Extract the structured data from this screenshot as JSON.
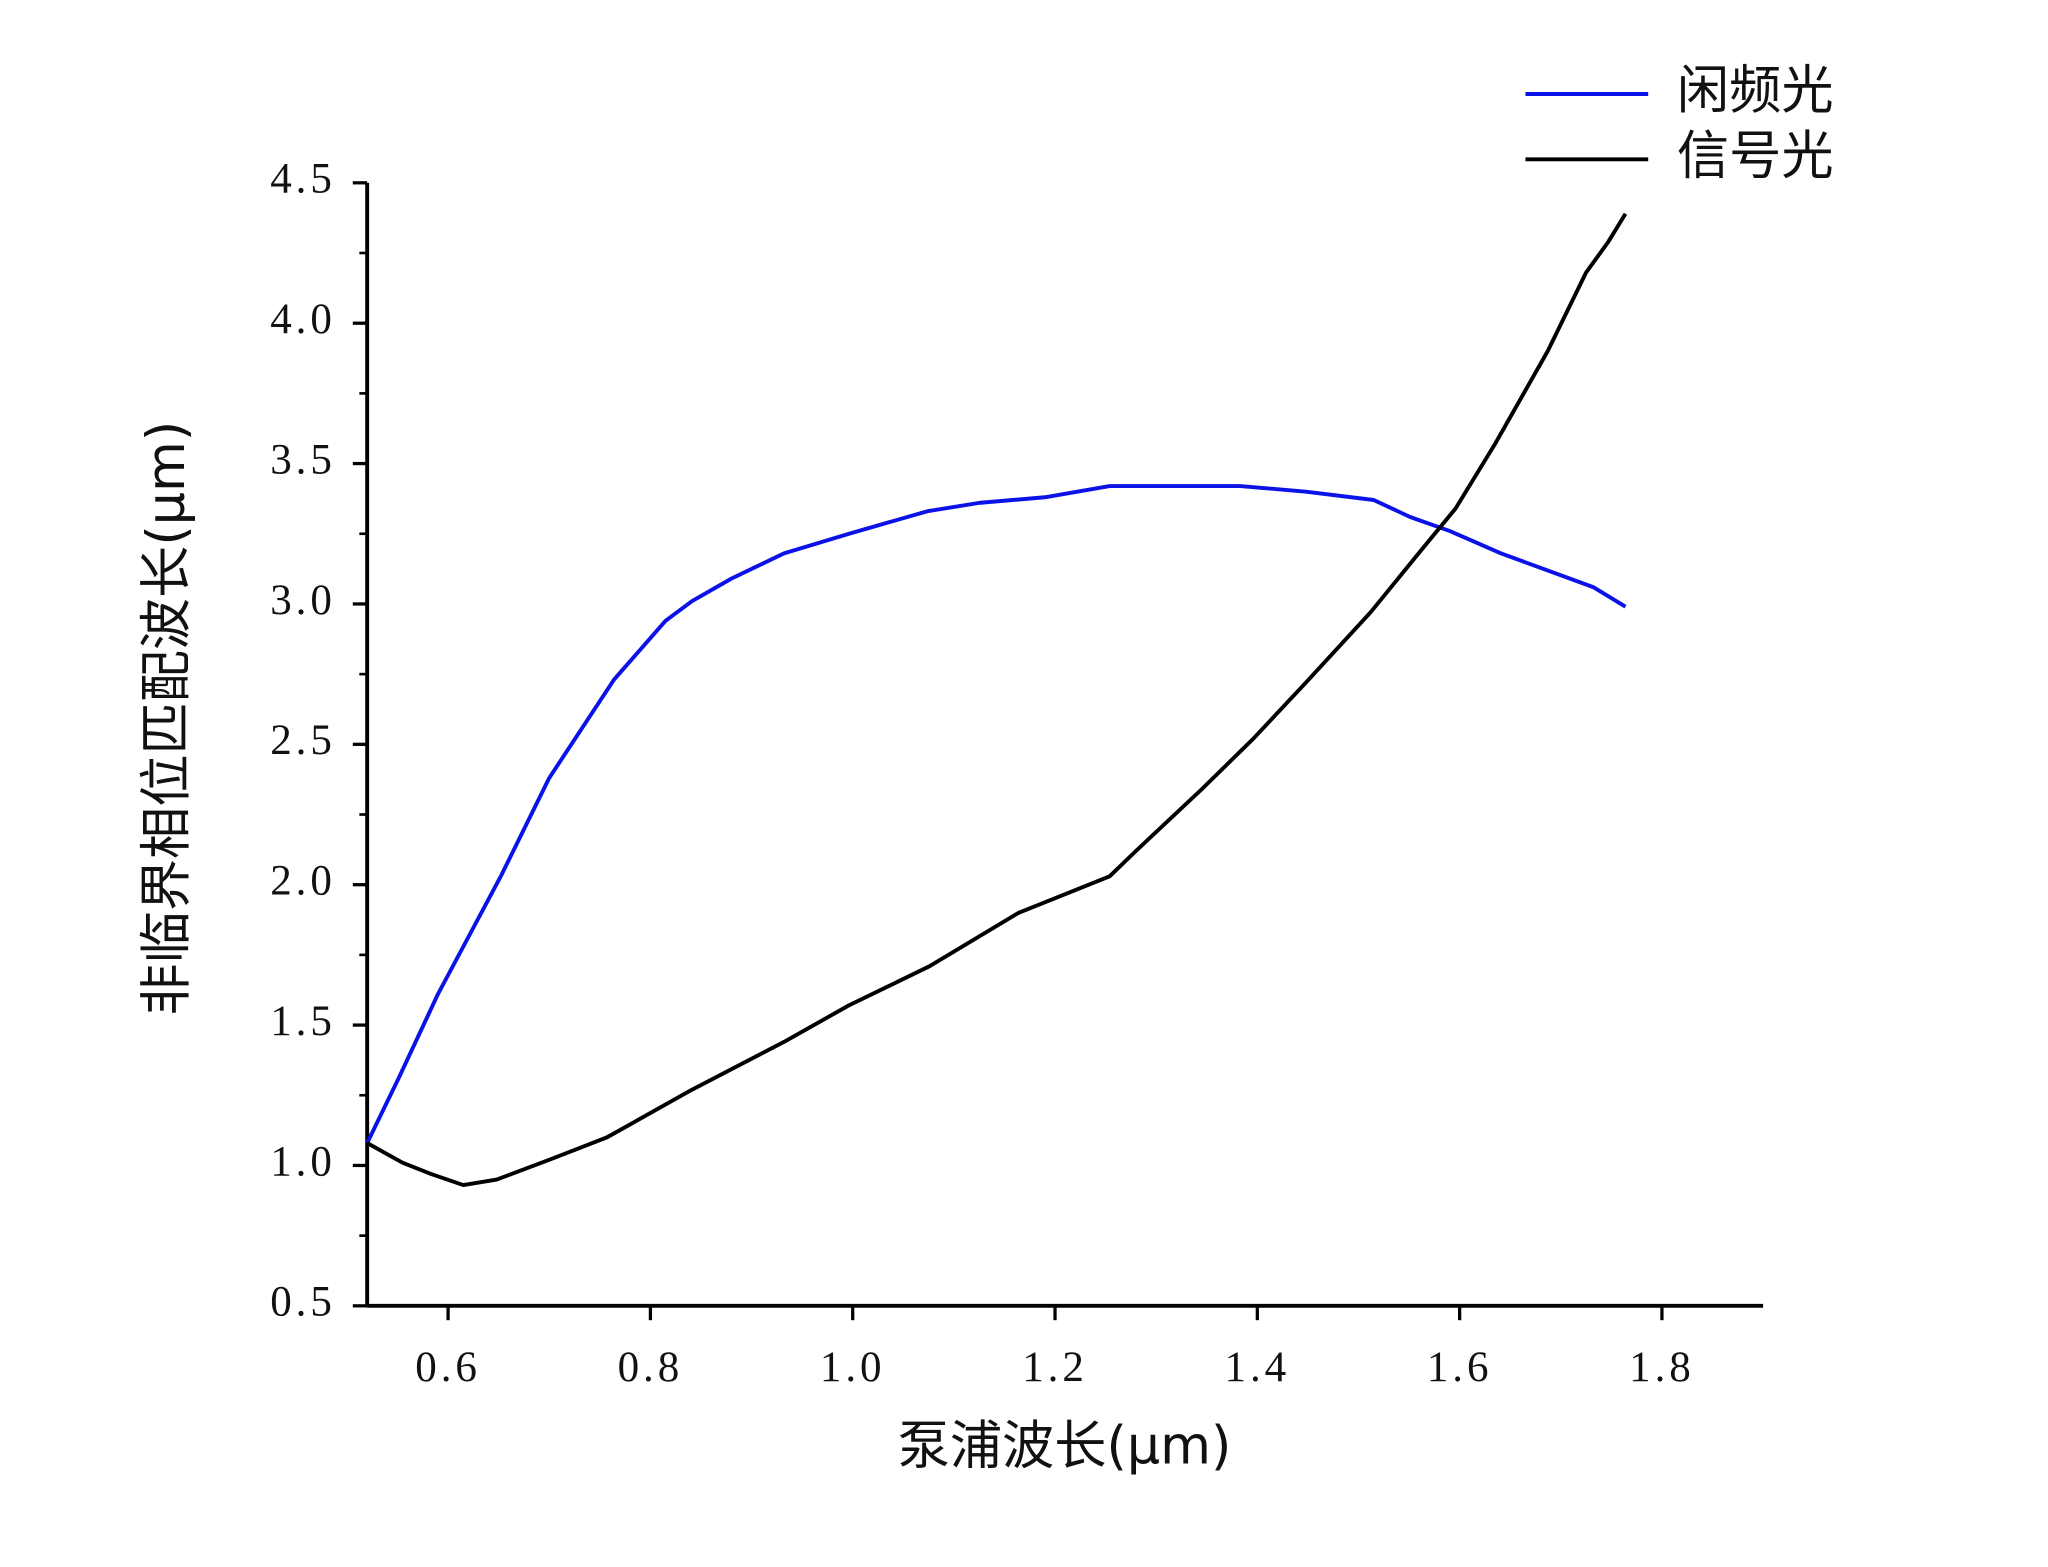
{
  "chart_data": {
    "type": "line",
    "xlabel": "泵浦波长(μm)",
    "ylabel": "非临界相位匹配波长(μm)",
    "xlim": [
      0.52,
      1.9
    ],
    "ylim": [
      0.5,
      4.5
    ],
    "xticks": [
      0.6,
      0.8,
      {
        "value": 1.0,
        "label": "1.0"
      },
      1.2,
      1.4,
      1.6,
      1.8
    ],
    "yticks": [
      0.5,
      {
        "value": 1.0,
        "label": "1.0"
      },
      1.5,
      {
        "value": 2.0,
        "label": "2.0"
      },
      2.5,
      {
        "value": 3.0,
        "label": "3.0"
      },
      3.5,
      {
        "value": 4.0,
        "label": "4.0"
      },
      4.5
    ],
    "legend": "top-right",
    "series": [
      {
        "name": "闲频光",
        "color": "#0a12e8",
        "x": [
          0.52,
          0.551,
          0.59,
          0.652,
          0.7,
          0.764,
          0.815,
          0.841,
          0.88,
          0.932,
          0.996,
          1.074,
          1.125,
          1.19,
          1.254,
          1.319,
          1.383,
          1.448,
          1.515,
          1.551,
          1.59,
          1.641,
          1.732,
          1.764
        ],
        "values": [
          1.08,
          1.31,
          1.61,
          2.03,
          2.38,
          2.73,
          2.94,
          3.01,
          3.09,
          3.18,
          3.25,
          3.33,
          3.36,
          3.38,
          3.42,
          3.42,
          3.42,
          3.4,
          3.37,
          3.31,
          3.26,
          3.18,
          3.06,
          2.99
        ]
      },
      {
        "name": "信号光",
        "color": "#000000",
        "x": [
          0.52,
          0.555,
          0.583,
          0.615,
          0.648,
          0.7,
          0.757,
          0.841,
          0.932,
          0.996,
          1.076,
          1.164,
          1.254,
          1.28,
          1.345,
          1.396,
          1.448,
          1.512,
          1.564,
          1.596,
          1.635,
          1.687,
          1.725,
          1.747,
          1.764
        ],
        "values": [
          1.08,
          1.01,
          0.97,
          0.93,
          0.95,
          1.02,
          1.1,
          1.27,
          1.44,
          1.57,
          1.71,
          1.9,
          2.03,
          2.12,
          2.34,
          2.52,
          2.72,
          2.97,
          3.2,
          3.34,
          3.57,
          3.9,
          4.18,
          4.29,
          4.39
        ]
      }
    ]
  }
}
